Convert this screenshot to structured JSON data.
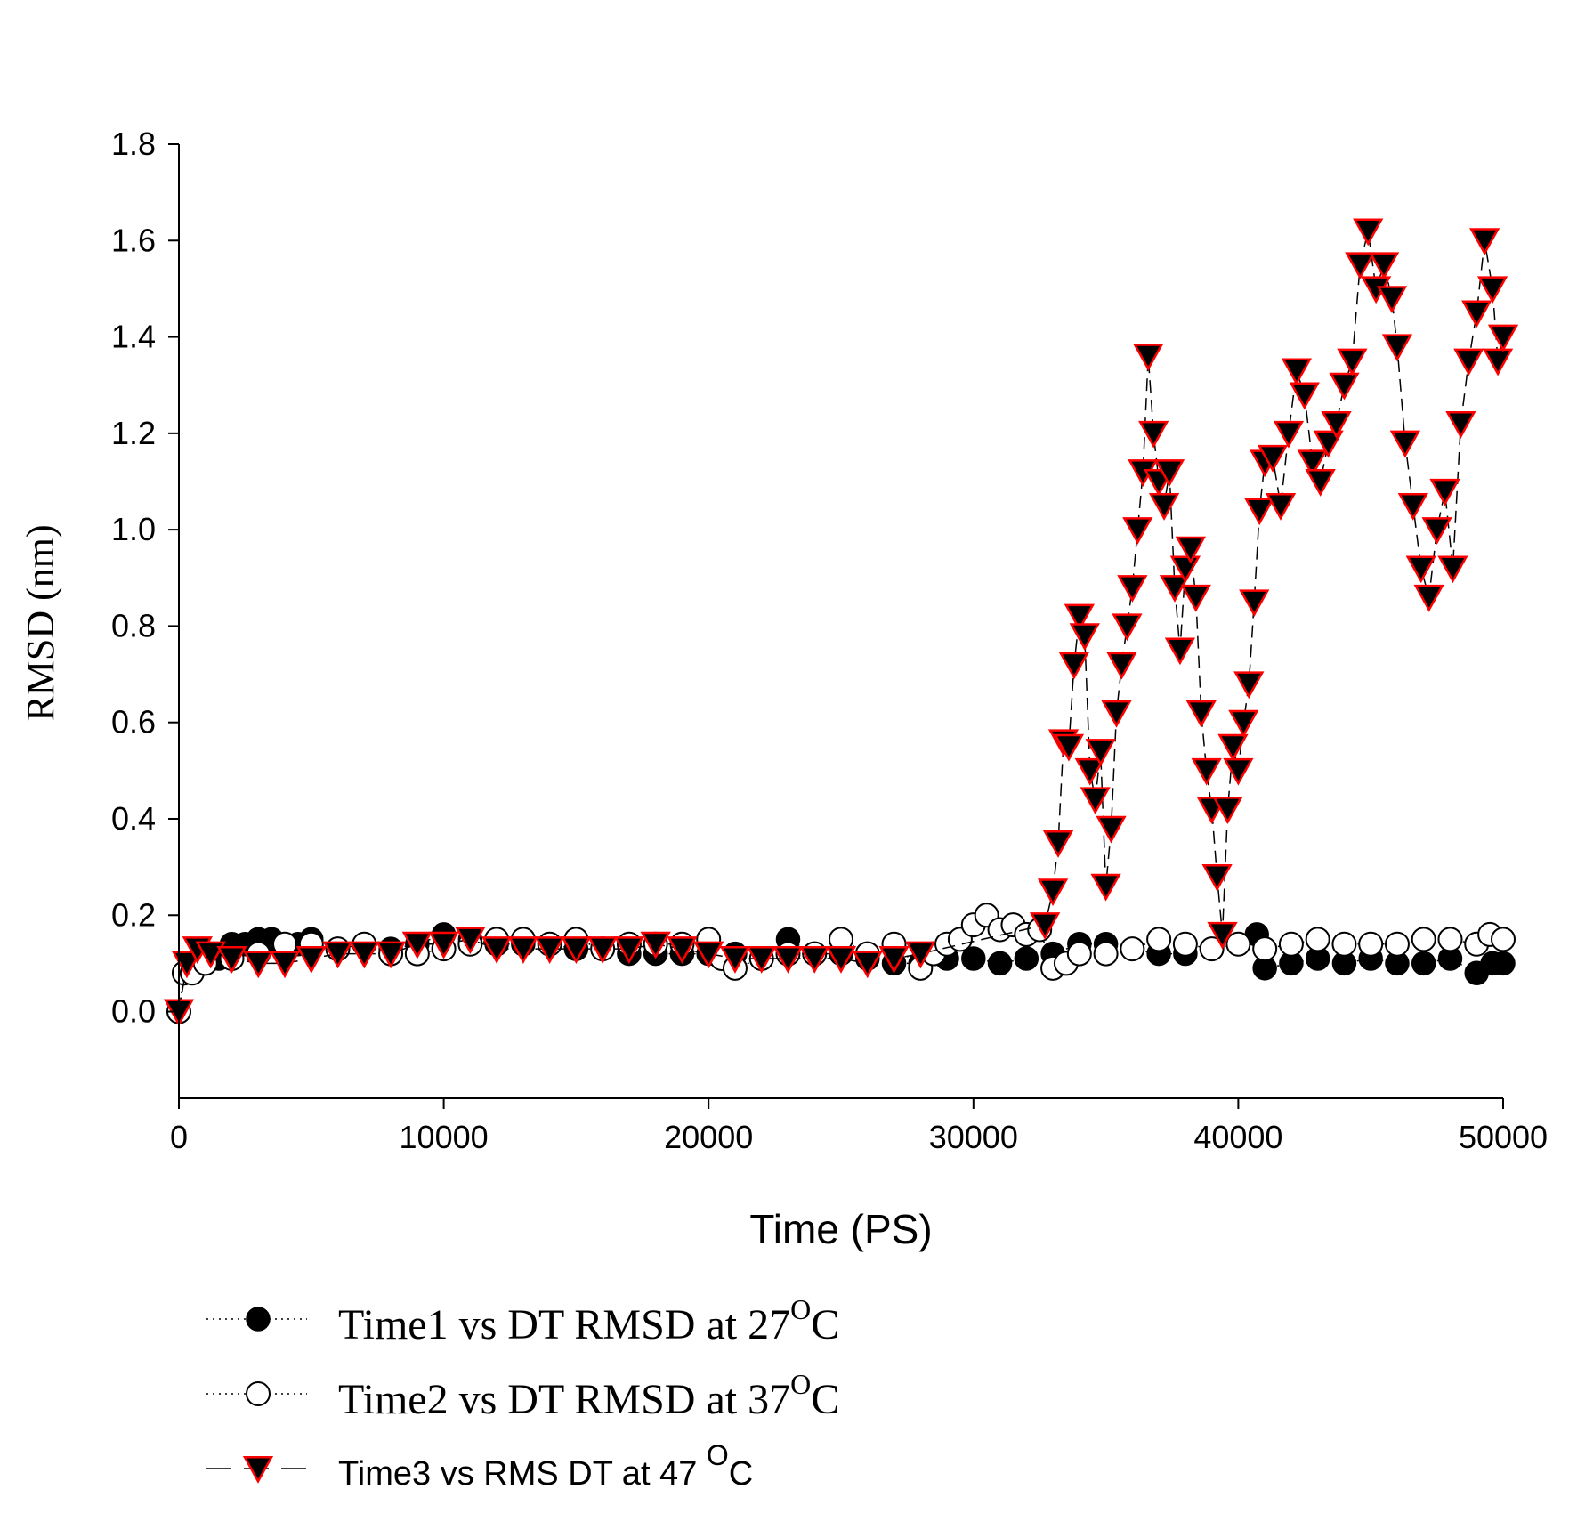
{
  "chart_data": {
    "type": "scatter",
    "title": "",
    "xlabel": "Time (PS)",
    "ylabel": "RMSD (nm)",
    "xlim": [
      0,
      50000
    ],
    "ylim": [
      -0.18,
      1.8
    ],
    "xticks": [
      "0",
      "10000",
      "20000",
      "30000",
      "40000",
      "50000"
    ],
    "yticks": [
      "1.8",
      "1.6",
      "1.4",
      "1.2",
      "1.0",
      "0.8",
      "0.6",
      "0.4",
      "0.2",
      "0.0"
    ],
    "grid": false,
    "legend_position": "bottom",
    "series": [
      {
        "name": "Time1 vs  DT RMSD at 27",
        "name_sup": "O",
        "name_tail": "C",
        "marker": "filled-circle",
        "line": "dotted",
        "color": "#000000",
        "x": [
          0,
          200,
          500,
          1000,
          1500,
          2000,
          2500,
          3000,
          3500,
          4000,
          4500,
          5000,
          6000,
          7000,
          8000,
          9000,
          10000,
          11000,
          12000,
          13000,
          14000,
          15000,
          16000,
          17000,
          18000,
          19000,
          20000,
          21000,
          22000,
          23000,
          24000,
          25000,
          26000,
          27000,
          28000,
          29000,
          30000,
          31000,
          32000,
          33000,
          34000,
          35000,
          36000,
          37000,
          38000,
          39000,
          40000,
          40700,
          41000,
          42000,
          43000,
          44000,
          45000,
          46000,
          47000,
          48000,
          49000,
          49600,
          50000
        ],
        "y": [
          0.0,
          0.08,
          0.09,
          0.1,
          0.11,
          0.14,
          0.14,
          0.15,
          0.15,
          0.14,
          0.14,
          0.15,
          0.13,
          0.14,
          0.13,
          0.14,
          0.16,
          0.15,
          0.14,
          0.14,
          0.14,
          0.13,
          0.13,
          0.12,
          0.12,
          0.12,
          0.12,
          0.12,
          0.11,
          0.15,
          0.12,
          0.12,
          0.11,
          0.1,
          0.1,
          0.11,
          0.11,
          0.1,
          0.11,
          0.12,
          0.14,
          0.14,
          0.13,
          0.12,
          0.12,
          0.13,
          0.14,
          0.16,
          0.09,
          0.1,
          0.11,
          0.1,
          0.11,
          0.1,
          0.1,
          0.11,
          0.08,
          0.1,
          0.1
        ]
      },
      {
        "name": "Time2 vs DT RMSD at 37",
        "name_sup": "O",
        "name_tail": "C",
        "marker": "open-circle",
        "line": "dotted",
        "color": "#000000",
        "x": [
          0,
          200,
          500,
          1000,
          2000,
          3000,
          4000,
          5000,
          6000,
          7000,
          8000,
          9000,
          10000,
          11000,
          12000,
          13000,
          14000,
          15000,
          16000,
          17000,
          18000,
          19000,
          20000,
          20500,
          21000,
          22000,
          23000,
          24000,
          25000,
          26000,
          27000,
          28000,
          28500,
          29000,
          29500,
          30000,
          30500,
          31000,
          31500,
          32000,
          32500,
          33000,
          33500,
          34000,
          35000,
          36000,
          37000,
          38000,
          39000,
          40000,
          41000,
          42000,
          43000,
          44000,
          45000,
          46000,
          47000,
          48000,
          49000,
          49500,
          50000
        ],
        "y": [
          0.0,
          0.08,
          0.08,
          0.1,
          0.11,
          0.12,
          0.14,
          0.14,
          0.13,
          0.14,
          0.12,
          0.12,
          0.13,
          0.14,
          0.15,
          0.15,
          0.14,
          0.15,
          0.13,
          0.14,
          0.14,
          0.14,
          0.15,
          0.11,
          0.09,
          0.11,
          0.12,
          0.12,
          0.15,
          0.12,
          0.14,
          0.09,
          0.12,
          0.14,
          0.15,
          0.18,
          0.2,
          0.17,
          0.18,
          0.16,
          0.17,
          0.09,
          0.1,
          0.12,
          0.12,
          0.13,
          0.15,
          0.14,
          0.13,
          0.14,
          0.13,
          0.14,
          0.15,
          0.14,
          0.14,
          0.14,
          0.15,
          0.15,
          0.14,
          0.16,
          0.15
        ]
      },
      {
        "name": "Time3 vs RMS DT at 47 ",
        "name_sup": "O",
        "name_tail": "C",
        "marker": "filled-triangle-down",
        "line": "dashed",
        "color": "#000000",
        "marker_edge_color": "#ff0000",
        "x": [
          0,
          300,
          700,
          1200,
          2000,
          3000,
          4000,
          5000,
          6000,
          7000,
          8000,
          9000,
          10000,
          11000,
          12000,
          13000,
          14000,
          15000,
          16000,
          17000,
          18000,
          19000,
          20000,
          21000,
          22000,
          23000,
          24000,
          25000,
          26000,
          27000,
          28000,
          32700,
          33000,
          33200,
          33400,
          33600,
          33800,
          34000,
          34200,
          34400,
          34600,
          34800,
          35000,
          35200,
          35400,
          35600,
          35800,
          36000,
          36200,
          36400,
          36600,
          36800,
          37000,
          37200,
          37400,
          37600,
          37800,
          38000,
          38200,
          38400,
          38600,
          38800,
          39000,
          39200,
          39400,
          39600,
          39800,
          40000,
          40200,
          40400,
          40600,
          40800,
          41000,
          41300,
          41600,
          41900,
          42200,
          42500,
          42800,
          43100,
          43400,
          43700,
          44000,
          44300,
          44600,
          44900,
          45200,
          45500,
          45800,
          46000,
          46300,
          46600,
          46900,
          47200,
          47500,
          47800,
          48100,
          48400,
          48700,
          49000,
          49300,
          49600,
          49800,
          50000
        ],
        "y": [
          0.0,
          0.1,
          0.13,
          0.12,
          0.11,
          0.1,
          0.1,
          0.11,
          0.12,
          0.12,
          0.12,
          0.14,
          0.14,
          0.15,
          0.13,
          0.13,
          0.13,
          0.13,
          0.13,
          0.13,
          0.14,
          0.13,
          0.12,
          0.11,
          0.11,
          0.11,
          0.11,
          0.11,
          0.1,
          0.11,
          0.12,
          0.18,
          0.25,
          0.35,
          0.56,
          0.55,
          0.72,
          0.82,
          0.78,
          0.5,
          0.44,
          0.54,
          0.26,
          0.38,
          0.62,
          0.72,
          0.8,
          0.88,
          1.0,
          1.12,
          1.36,
          1.2,
          1.1,
          1.05,
          1.12,
          0.88,
          0.75,
          0.92,
          0.96,
          0.86,
          0.62,
          0.5,
          0.42,
          0.28,
          0.16,
          0.42,
          0.55,
          0.5,
          0.6,
          0.68,
          0.85,
          1.04,
          1.14,
          1.15,
          1.05,
          1.2,
          1.33,
          1.28,
          1.14,
          1.1,
          1.18,
          1.22,
          1.3,
          1.35,
          1.55,
          1.62,
          1.5,
          1.55,
          1.48,
          1.38,
          1.18,
          1.05,
          0.92,
          0.86,
          1.0,
          1.08,
          0.92,
          1.22,
          1.35,
          1.45,
          1.6,
          1.5,
          1.35,
          1.4
        ]
      }
    ]
  }
}
